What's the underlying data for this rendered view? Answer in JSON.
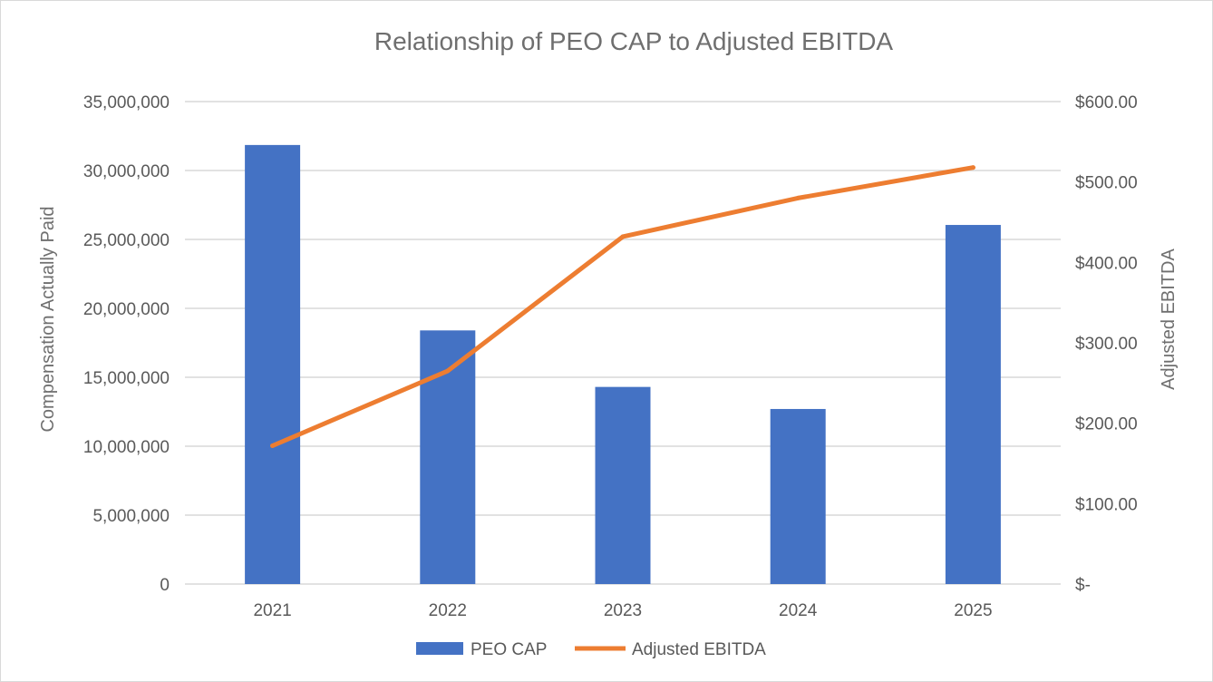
{
  "chart_data": {
    "type": "bar",
    "title": "Relationship of PEO CAP to Adjusted EBITDA",
    "categories": [
      "2021",
      "2022",
      "2023",
      "2024",
      "2025"
    ],
    "series": [
      {
        "name": "PEO CAP",
        "type": "bar",
        "axis": "left",
        "color": "#4472C4",
        "values": [
          31850000,
          18400000,
          14300000,
          12700000,
          26050000
        ]
      },
      {
        "name": "Adjusted EBITDA",
        "type": "line",
        "axis": "right",
        "color": "#ED7D31",
        "values": [
          172,
          265,
          432,
          480,
          518
        ]
      }
    ],
    "ylabel": "Compensation Actually Paid",
    "y2label": "Adjusted EBITDA",
    "ylim": [
      0,
      35000000
    ],
    "y2lim": [
      0,
      600
    ],
    "yticks": [
      "0",
      "5,000,000",
      "10,000,000",
      "15,000,000",
      "20,000,000",
      "25,000,000",
      "30,000,000",
      "35,000,000"
    ],
    "y2ticks": [
      "$-",
      "$100.00",
      "$200.00",
      "$300.00",
      "$400.00",
      "$500.00",
      "$600.00"
    ],
    "grid": true,
    "legend": "bottom"
  }
}
